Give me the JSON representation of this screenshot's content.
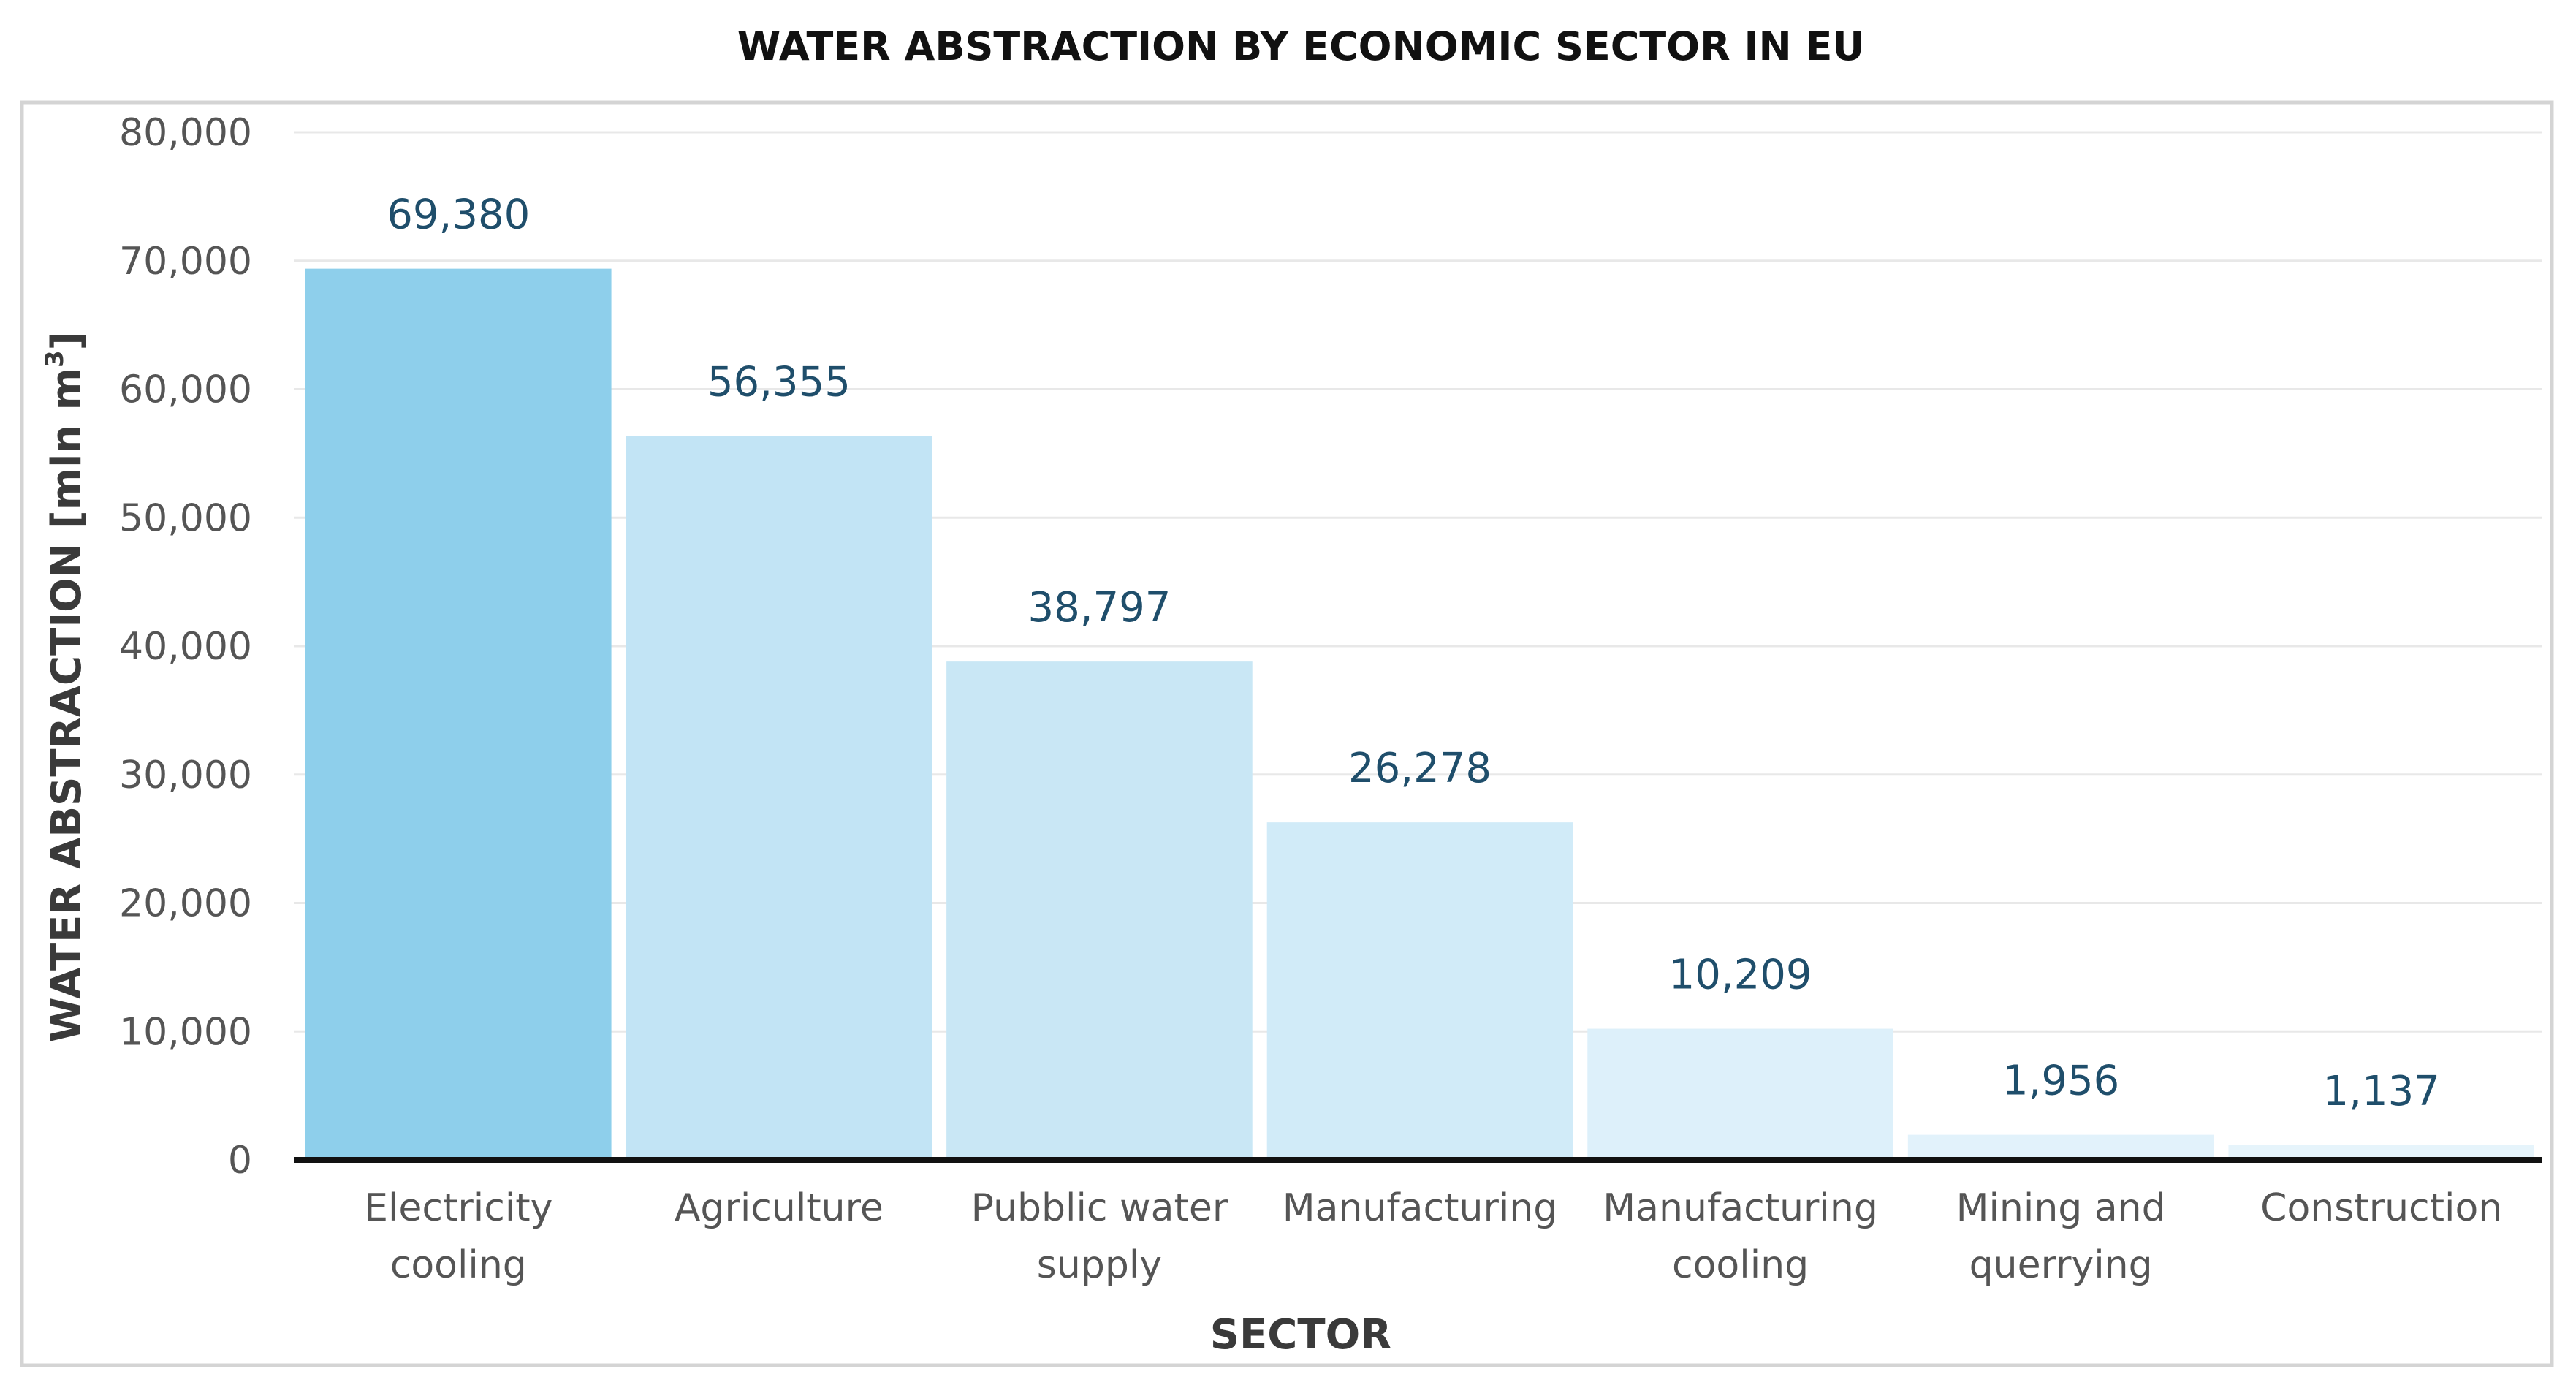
{
  "chart_data": {
    "type": "bar",
    "title": "WATER ABSTRACTION BY ECONOMIC SECTOR IN EU",
    "xlabel": "SECTOR",
    "ylabel_main": "WATER ABSTRACTION [mln m",
    "ylabel_sup": "3",
    "ylabel_end": "]",
    "categories": [
      [
        "Electricity",
        "cooling"
      ],
      [
        "Agriculture"
      ],
      [
        "Pubblic water",
        "supply"
      ],
      [
        "Manufacturing"
      ],
      [
        "Manufacturing",
        "cooling"
      ],
      [
        "Mining and",
        "querrying"
      ],
      [
        "Construction"
      ]
    ],
    "values": [
      69380,
      56355,
      38797,
      26278,
      10209,
      1956,
      1137
    ],
    "value_labels": [
      "69,380",
      "56,355",
      "38,797",
      "26,278",
      "10,209",
      "1,956",
      "1,137"
    ],
    "bar_colors": [
      "#8ecfeb",
      "#c2e4f5",
      "#c9e7f5",
      "#d1ebf8",
      "#ddf0fa",
      "#e2f2fb",
      "#e6f4fb"
    ],
    "ylim": [
      0,
      80000
    ],
    "yticks": [
      0,
      10000,
      20000,
      30000,
      40000,
      50000,
      60000,
      70000,
      80000
    ],
    "ytick_labels": [
      "0",
      "10,000",
      "20,000",
      "30,000",
      "40,000",
      "50,000",
      "60,000",
      "70,000",
      "80,000"
    ],
    "grid": true,
    "legend": "none"
  }
}
